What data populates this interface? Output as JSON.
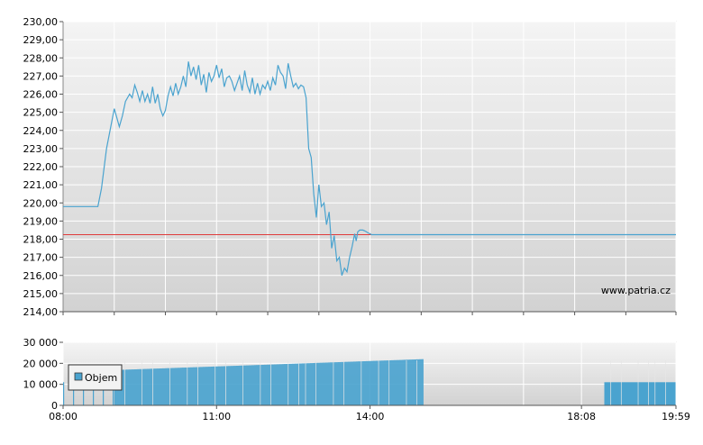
{
  "watermark": "www.patria.cz",
  "chart_data": [
    {
      "type": "line",
      "ylim": [
        214,
        230
      ],
      "yticks": [
        "214,00",
        "215,00",
        "216,00",
        "217,00",
        "218,00",
        "219,00",
        "220,00",
        "221,00",
        "222,00",
        "223,00",
        "224,00",
        "225,00",
        "226,00",
        "227,00",
        "228,00",
        "229,00",
        "230,00"
      ],
      "grid": true,
      "colors": {
        "line": "#4aa3cf",
        "reference": "#e03c3c"
      },
      "reference_line": 218.25,
      "series": [
        {
          "x": [
            8.0,
            8.68,
            8.75,
            8.85,
            9.0,
            9.1,
            9.16,
            9.22,
            9.3,
            9.35,
            9.4,
            9.45,
            9.5,
            9.55,
            9.6,
            9.65,
            9.7,
            9.75,
            9.8,
            9.85,
            9.9,
            9.95,
            10.0,
            10.05,
            10.1,
            10.15,
            10.2,
            10.25,
            10.3,
            10.35,
            10.4,
            10.45,
            10.5,
            10.55,
            10.6,
            10.65,
            10.7,
            10.75,
            10.8,
            10.85,
            10.9,
            10.95,
            11.0,
            11.05,
            11.1,
            11.15,
            11.2,
            11.25,
            11.3,
            11.35,
            11.4,
            11.45,
            11.5,
            11.55,
            11.6,
            11.65,
            11.7,
            11.75,
            11.8,
            11.85,
            11.9,
            11.95,
            12.0,
            12.05,
            12.1,
            12.15,
            12.2,
            12.25,
            12.3,
            12.35,
            12.4,
            12.45,
            12.5,
            12.55,
            12.6,
            12.65,
            12.7,
            12.75,
            12.8,
            12.85,
            12.9,
            12.95,
            13.0,
            13.05,
            13.1,
            13.15,
            13.2,
            13.25,
            13.3,
            13.35,
            13.4,
            13.45,
            13.5,
            13.55,
            13.6,
            13.65,
            13.7,
            13.73,
            13.76,
            13.8,
            13.83,
            13.86,
            13.9,
            13.93,
            13.96,
            14.0,
            14.03,
            14.06,
            14.1,
            14.13,
            14.16,
            14.2,
            14.23,
            14.26,
            14.3,
            14.33,
            14.36,
            14.4,
            14.43,
            14.46,
            14.5,
            14.55,
            14.6,
            14.7,
            16.5,
            18.5,
            19.98
          ],
          "values": [
            219.8,
            219.8,
            220.8,
            223.0,
            225.2,
            224.2,
            224.8,
            225.6,
            226.0,
            225.8,
            226.5,
            226.1,
            225.6,
            226.2,
            225.6,
            226.0,
            225.5,
            226.4,
            225.5,
            226.0,
            225.2,
            224.8,
            225.1,
            225.9,
            226.4,
            225.9,
            226.6,
            226.0,
            226.4,
            227.0,
            226.4,
            227.8,
            227.0,
            227.5,
            226.8,
            227.6,
            226.5,
            227.1,
            226.1,
            227.2,
            226.7,
            227.0,
            227.6,
            226.9,
            227.4,
            226.4,
            226.9,
            227.0,
            226.7,
            226.2,
            226.6,
            227.0,
            226.2,
            227.3,
            226.5,
            226.1,
            226.9,
            226.0,
            226.6,
            226.0,
            226.5,
            226.3,
            226.7,
            226.2,
            226.9,
            226.5,
            227.6,
            227.2,
            227.0,
            226.3,
            227.7,
            227.0,
            226.4,
            226.6,
            226.3,
            226.5,
            226.4,
            225.8,
            223.0,
            222.5,
            220.5,
            219.2,
            221.0,
            219.8,
            220.0,
            218.8,
            219.5,
            217.5,
            218.2,
            216.8,
            217.0,
            216.0,
            216.4,
            216.2,
            217.0,
            217.6,
            218.3,
            217.9,
            218.4,
            218.5,
            218.5,
            218.5,
            218.45,
            218.4,
            218.35,
            218.3,
            218.25,
            218.25,
            218.25,
            218.25,
            218.25,
            218.25,
            218.25,
            218.25,
            218.25,
            218.25,
            218.25,
            218.25,
            218.25,
            218.25,
            218.25,
            218.25,
            218.25,
            218.25,
            218.25,
            218.25,
            218.25
          ]
        }
      ]
    },
    {
      "type": "bar",
      "ylim": [
        0,
        30000
      ],
      "yticks": [
        "0",
        "10 000",
        "20 000",
        "30 000"
      ],
      "xticks": [
        "08:00",
        "11:00",
        "14:00",
        "18:08",
        "19:59"
      ],
      "legend": {
        "placement": "top-left",
        "label": "Objem"
      },
      "grid": true,
      "colors": {
        "bar": "#4aa3cf"
      },
      "series": [
        {
          "name": "Objem",
          "segments": [
            {
              "start": 8.0,
              "end": 9.0,
              "value_start": 11000,
              "value_end": 16500,
              "sparse": true
            },
            {
              "start": 9.0,
              "end": 15.05,
              "value_start": 16800,
              "value_end": 22000,
              "sparse": false
            },
            {
              "start": 18.58,
              "end": 19.98,
              "value_start": 11000,
              "value_end": 11000,
              "sparse": false
            }
          ]
        }
      ]
    }
  ]
}
